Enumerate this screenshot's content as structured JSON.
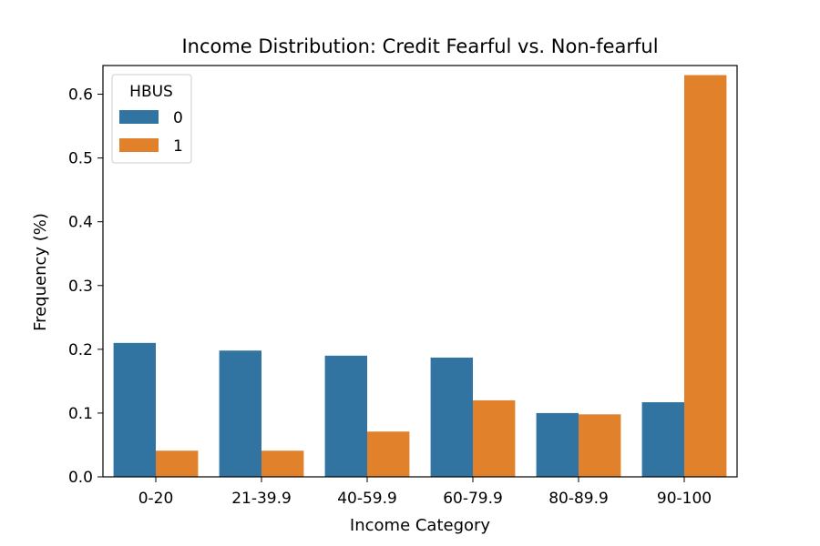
{
  "chart_data": {
    "type": "bar",
    "title": "Income Distribution: Credit Fearful vs. Non-fearful",
    "xlabel": "Income Category",
    "ylabel": "Frequency (%)",
    "categories": [
      "0-20",
      "21-39.9",
      "40-59.9",
      "60-79.9",
      "80-89.9",
      "90-100"
    ],
    "series": [
      {
        "name": "0",
        "color": "#3274a1",
        "values": [
          0.21,
          0.198,
          0.19,
          0.187,
          0.1,
          0.117
        ]
      },
      {
        "name": "1",
        "color": "#e1812c",
        "values": [
          0.041,
          0.041,
          0.071,
          0.12,
          0.098,
          0.63
        ]
      }
    ],
    "ylim": [
      0,
      0.645
    ],
    "yticks": [
      "0.0",
      "0.1",
      "0.2",
      "0.3",
      "0.4",
      "0.5",
      "0.6"
    ],
    "grid": false,
    "legend": {
      "title": "HBUS",
      "placement": "top-left"
    }
  }
}
